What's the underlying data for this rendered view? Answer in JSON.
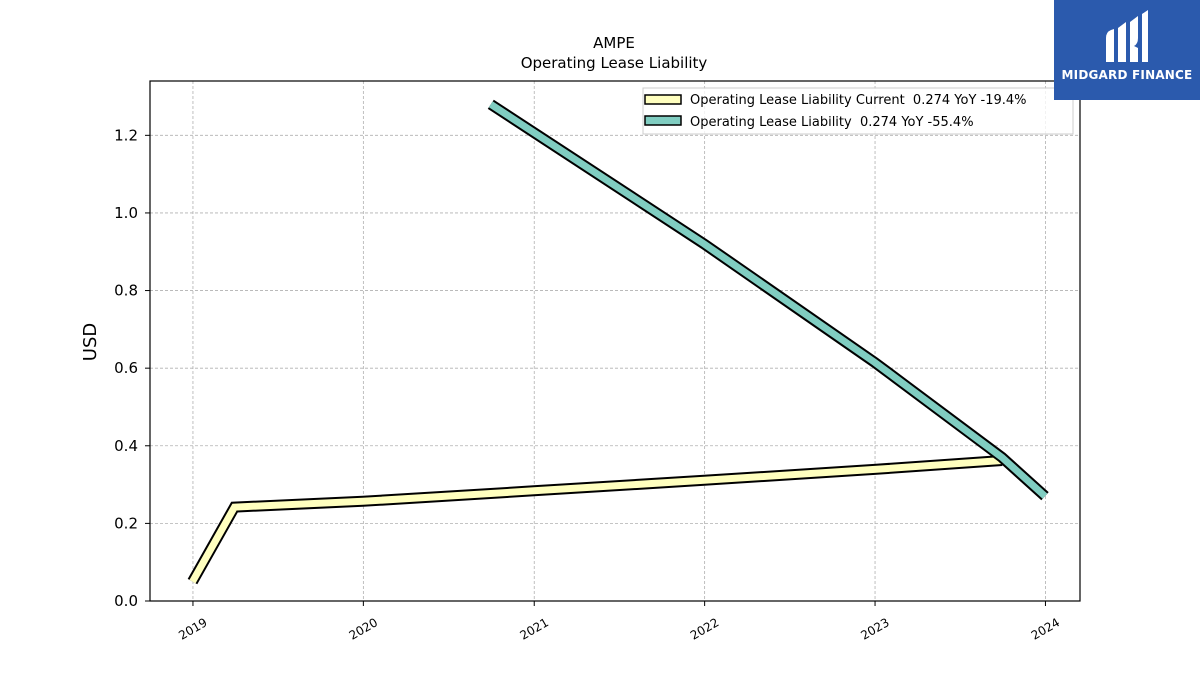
{
  "logo": {
    "text": "MIDGARD FINANCE",
    "icon": "midgard-logo-icon",
    "color": "#2b5aad"
  },
  "chart_data": {
    "type": "line",
    "title": "AMPE",
    "subtitle": "Operating Lease Liability",
    "xlabel": "",
    "ylabel": "USD",
    "x_ticks": [
      "2019",
      "2020",
      "2021",
      "2022",
      "2023",
      "2024"
    ],
    "y_ticks": [
      "0.0",
      "0.2",
      "0.4",
      "0.6",
      "0.8",
      "1.0",
      "1.2"
    ],
    "xlim": [
      "2018-10-01",
      "2024-03-15"
    ],
    "ylim": [
      0,
      1.34
    ],
    "grid": true,
    "legend_position": "top-right",
    "series": [
      {
        "name": "Operating Lease Liability Current  0.274 YoY -19.4%",
        "color": "#ffffbf",
        "points": [
          {
            "x": "2018-12-31",
            "y": 0.05
          },
          {
            "x": "2019-03-31",
            "y": 0.242
          },
          {
            "x": "2019-12-31",
            "y": 0.257
          },
          {
            "x": "2020-12-31",
            "y": 0.284
          },
          {
            "x": "2021-12-31",
            "y": 0.311
          },
          {
            "x": "2022-12-31",
            "y": 0.339
          },
          {
            "x": "2023-09-30",
            "y": 0.362
          }
        ]
      },
      {
        "name": "Operating Lease Liability  0.274 YoY -55.4%",
        "color": "#80cdc1",
        "points": [
          {
            "x": "2020-09-30",
            "y": 1.28
          },
          {
            "x": "2021-12-31",
            "y": 0.92
          },
          {
            "x": "2022-12-31",
            "y": 0.615
          },
          {
            "x": "2023-09-30",
            "y": 0.37
          },
          {
            "x": "2023-12-31",
            "y": 0.27
          }
        ]
      }
    ]
  }
}
